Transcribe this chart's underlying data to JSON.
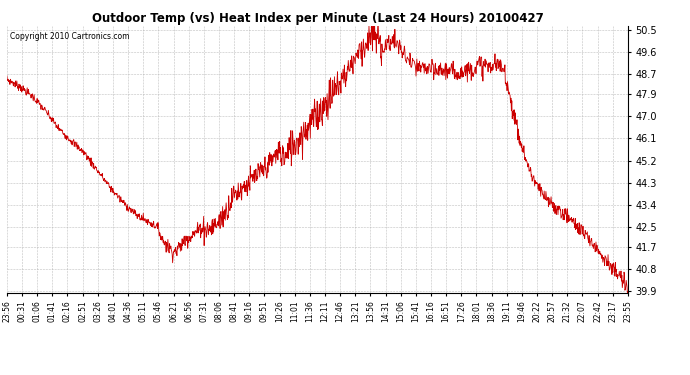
{
  "title": "Outdoor Temp (vs) Heat Index per Minute (Last 24 Hours) 20100427",
  "copyright": "Copyright 2010 Cartronics.com",
  "line_color": "#cc0000",
  "background_color": "#ffffff",
  "grid_color": "#b0b0b0",
  "y_min": 39.9,
  "y_max": 50.5,
  "y_ticks": [
    39.9,
    40.8,
    41.7,
    42.5,
    43.4,
    44.3,
    45.2,
    46.1,
    47.0,
    47.9,
    48.7,
    49.6,
    50.5
  ],
  "x_labels": [
    "23:56",
    "00:31",
    "01:06",
    "01:41",
    "02:16",
    "02:51",
    "03:26",
    "04:01",
    "04:36",
    "05:11",
    "05:46",
    "06:21",
    "06:56",
    "07:31",
    "08:06",
    "08:41",
    "09:16",
    "09:51",
    "10:26",
    "11:01",
    "11:36",
    "12:11",
    "12:46",
    "13:21",
    "13:56",
    "14:31",
    "15:06",
    "15:41",
    "16:16",
    "16:51",
    "17:26",
    "18:01",
    "18:36",
    "19:11",
    "19:46",
    "20:22",
    "20:57",
    "21:32",
    "22:07",
    "22:42",
    "23:17",
    "23:55"
  ],
  "figsize": [
    6.9,
    3.75
  ],
  "dpi": 100
}
